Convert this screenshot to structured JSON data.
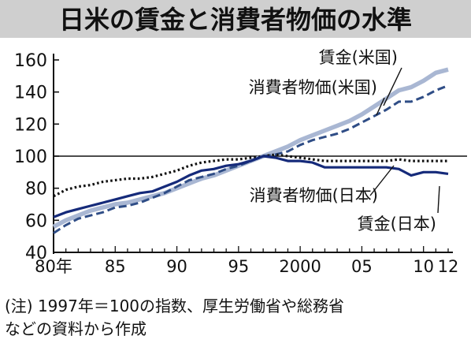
{
  "title": "日米の賃金と消費者物価の水準",
  "note": "(注) 1997年＝100の指数、厚生労働省や総務省\nなどの資料から作成",
  "chart_data": {
    "type": "line",
    "title": "日米の賃金と消費者物価の水準",
    "x_axis": {
      "range": [
        1980,
        2012
      ],
      "tick_labels": [
        {
          "x": 1980,
          "label": "80年"
        },
        {
          "x": 1985,
          "label": "85"
        },
        {
          "x": 1990,
          "label": "90"
        },
        {
          "x": 1995,
          "label": "95"
        },
        {
          "x": 2000,
          "label": "2000"
        },
        {
          "x": 2005,
          "label": "05"
        },
        {
          "x": 2010,
          "label": "10"
        },
        {
          "x": 2012,
          "label": "12"
        }
      ]
    },
    "y_axis": {
      "range": [
        40,
        160
      ],
      "ticks": [
        40,
        60,
        80,
        100,
        120,
        140,
        160
      ]
    },
    "reference_line": 100,
    "grid": false,
    "x": [
      1980,
      1981,
      1982,
      1983,
      1984,
      1985,
      1986,
      1987,
      1988,
      1989,
      1990,
      1991,
      1992,
      1993,
      1994,
      1995,
      1996,
      1997,
      1998,
      1999,
      2000,
      2001,
      2002,
      2003,
      2004,
      2005,
      2006,
      2007,
      2008,
      2009,
      2010,
      2011,
      2012
    ],
    "series": [
      {
        "name": "賃金(米国)",
        "color": "#a9b7d3",
        "style": "solid-thick",
        "values": [
          56,
          60,
          63,
          66,
          68,
          70,
          71,
          73,
          75,
          77,
          80,
          83,
          86,
          88,
          91,
          94,
          97,
          100,
          103,
          106,
          110,
          113,
          116,
          119,
          122,
          126,
          131,
          136,
          141,
          143,
          147,
          152,
          154
        ]
      },
      {
        "name": "消費者物価(米国)",
        "color": "#2f4d86",
        "style": "dashed",
        "values": [
          52,
          57,
          61,
          63,
          65,
          68,
          69,
          71,
          74,
          77,
          81,
          85,
          87,
          89,
          92,
          94,
          97,
          100,
          101,
          103,
          107,
          110,
          112,
          114,
          117,
          121,
          125,
          129,
          134,
          134,
          137,
          141,
          144
        ]
      },
      {
        "name": "消費者物価(日本)",
        "color": "#111111",
        "style": "dotted",
        "values": [
          75,
          79,
          81,
          82,
          84,
          85,
          86,
          86,
          87,
          89,
          91,
          94,
          96,
          97,
          98,
          98,
          99,
          100,
          101,
          100,
          99,
          98,
          97,
          97,
          97,
          97,
          97,
          97,
          98,
          97,
          97,
          97,
          97
        ]
      },
      {
        "name": "賃金(日本)",
        "color": "#152a7a",
        "style": "solid",
        "values": [
          62,
          65,
          67,
          69,
          71,
          73,
          75,
          77,
          78,
          81,
          84,
          88,
          91,
          92,
          94,
          95,
          97,
          100,
          99,
          97,
          97,
          96,
          93,
          93,
          93,
          93,
          93,
          93,
          92,
          88,
          90,
          90,
          89
        ]
      }
    ]
  }
}
